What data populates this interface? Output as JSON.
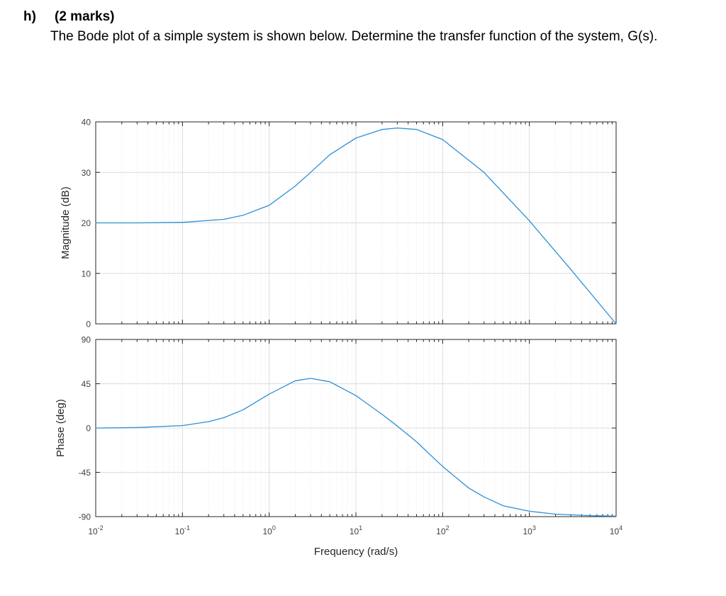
{
  "question": {
    "label": "h)",
    "marks": "(2 marks)",
    "text": "The Bode plot of a simple system is shown below. Determine the transfer function of the system, G(s)."
  },
  "chart_data": {
    "type": "line",
    "xscale": "log",
    "xlabel": "Frequency  (rad/s)",
    "xlim": [
      0.01,
      10000
    ],
    "xtick_labels": [
      {
        "base": "10",
        "exp": "-2"
      },
      {
        "base": "10",
        "exp": "-1"
      },
      {
        "base": "10",
        "exp": "0"
      },
      {
        "base": "10",
        "exp": "1"
      },
      {
        "base": "10",
        "exp": "2"
      },
      {
        "base": "10",
        "exp": "3"
      },
      {
        "base": "10",
        "exp": "4"
      }
    ],
    "line_color": "#2b8fd6",
    "grid": true,
    "magnitude": {
      "ylabel": "Magnitude (dB)",
      "ylim": [
        0,
        40
      ],
      "yticks": [
        0,
        10,
        20,
        30,
        40
      ],
      "ytick_labels": [
        "0",
        "10",
        "20",
        "30",
        "40"
      ],
      "series": [
        {
          "x": [
            0.01,
            0.03,
            0.1,
            0.3,
            0.5,
            1,
            2,
            3,
            5,
            10,
            20,
            30,
            50,
            100,
            300,
            1000,
            3000,
            10000
          ],
          "y": [
            20,
            20,
            20.1,
            20.7,
            21.5,
            23.5,
            27.3,
            30,
            33.5,
            36.8,
            38.5,
            38.8,
            38.5,
            36.5,
            30,
            20.4,
            10.8,
            0
          ]
        }
      ]
    },
    "phase": {
      "ylabel": "Phase (deg)",
      "ylim": [
        -90,
        90
      ],
      "yticks": [
        -90,
        -45,
        0,
        45,
        90
      ],
      "ytick_labels": [
        "-90",
        "-45",
        "0",
        "45",
        "90"
      ],
      "series": [
        {
          "x": [
            0.01,
            0.03,
            0.1,
            0.2,
            0.3,
            0.5,
            1,
            2,
            3,
            5,
            10,
            20,
            30,
            50,
            100,
            200,
            300,
            500,
            1000,
            2000,
            5000,
            10000
          ],
          "y": [
            0,
            0.5,
            2.5,
            6.5,
            10.5,
            18.5,
            34.5,
            48,
            50.5,
            47,
            33,
            14,
            2,
            -14,
            -39,
            -61,
            -70,
            -79,
            -84.5,
            -87.5,
            -89,
            -89.5
          ]
        }
      ]
    }
  }
}
